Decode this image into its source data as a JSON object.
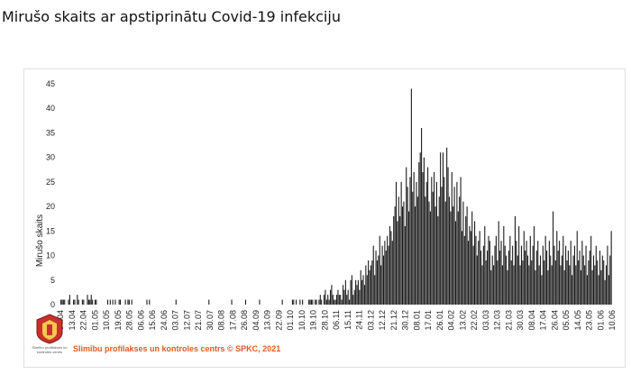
{
  "title": "Mirušo skaits ar apstiprinātu Covid-19 infekciju",
  "footer": {
    "credit": "Slimību profilakses un kontroles centrs © SPKC, 2021",
    "logo_text": "Slimību profilakses un kontroles centrs"
  },
  "colors": {
    "bar": "#1a1a1a",
    "credit": "#e15a24"
  },
  "chart_data": {
    "type": "bar",
    "ylabel": "Mirušo skaits",
    "xlabel": "",
    "ylim": [
      0,
      45
    ],
    "yticks": [
      0,
      5,
      10,
      15,
      20,
      25,
      30,
      35,
      40,
      45
    ],
    "grid": false,
    "date_range": [
      "2020-04-04",
      "2021-06-10"
    ],
    "xtick_labels": [
      "04.04",
      "13.04",
      "22.04",
      "01.05",
      "10.05",
      "19.05",
      "28.05",
      "06.06",
      "15.06",
      "24.06",
      "03.07",
      "12.07",
      "21.07",
      "30.07",
      "08.08",
      "17.08",
      "26.08",
      "04.09",
      "13.09",
      "22.09",
      "01.10",
      "10.10",
      "19.10",
      "28.10",
      "06.11",
      "15.11",
      "24.11",
      "03.12",
      "12.12",
      "21.12",
      "30.12",
      "08.01",
      "17.01",
      "26.01",
      "04.02",
      "13.02",
      "22.02",
      "03.03",
      "12.03",
      "21.03",
      "30.03",
      "08.04",
      "17.04",
      "26.04",
      "05.05",
      "14.05",
      "23.05",
      "01.06",
      "10.06"
    ],
    "values": [
      1,
      1,
      1,
      1,
      0,
      0,
      1,
      2,
      0,
      0,
      1,
      1,
      0,
      2,
      1,
      0,
      0,
      1,
      1,
      0,
      0,
      2,
      1,
      1,
      2,
      1,
      0,
      1,
      1,
      0,
      0,
      0,
      0,
      0,
      0,
      0,
      0,
      1,
      0,
      1,
      0,
      1,
      0,
      1,
      0,
      0,
      1,
      1,
      0,
      0,
      0,
      1,
      0,
      1,
      1,
      0,
      1,
      0,
      0,
      0,
      0,
      0,
      0,
      0,
      0,
      0,
      0,
      0,
      1,
      0,
      1,
      0,
      0,
      0,
      0,
      0,
      0,
      0,
      0,
      0,
      0,
      0,
      0,
      0,
      0,
      0,
      0,
      0,
      0,
      0,
      0,
      1,
      0,
      0,
      0,
      0,
      0,
      0,
      0,
      0,
      0,
      0,
      0,
      0,
      0,
      0,
      0,
      0,
      0,
      0,
      0,
      0,
      0,
      0,
      0,
      0,
      0,
      1,
      0,
      0,
      0,
      0,
      0,
      0,
      0,
      0,
      0,
      0,
      0,
      0,
      0,
      0,
      0,
      0,
      0,
      1,
      0,
      0,
      0,
      0,
      0,
      0,
      0,
      0,
      0,
      0,
      1,
      0,
      0,
      0,
      0,
      0,
      0,
      0,
      0,
      0,
      0,
      1,
      0,
      0,
      0,
      0,
      0,
      0,
      0,
      0,
      0,
      0,
      0,
      0,
      0,
      0,
      0,
      0,
      0,
      1,
      0,
      0,
      0,
      0,
      0,
      0,
      0,
      1,
      1,
      0,
      1,
      0,
      0,
      1,
      0,
      1,
      0,
      0,
      0,
      0,
      1,
      1,
      1,
      1,
      0,
      1,
      1,
      0,
      1,
      2,
      1,
      0,
      2,
      3,
      1,
      2,
      1,
      3,
      4,
      2,
      1,
      1,
      2,
      3,
      2,
      2,
      1,
      4,
      3,
      5,
      2,
      3,
      1,
      5,
      6,
      2,
      3,
      5,
      4,
      5,
      3,
      7,
      5,
      6,
      4,
      8,
      6,
      9,
      7,
      8,
      9,
      12,
      6,
      11,
      9,
      10,
      14,
      8,
      12,
      10,
      13,
      11,
      14,
      12,
      16,
      15,
      13,
      18,
      20,
      25,
      17,
      22,
      18,
      25,
      20,
      21,
      16,
      28,
      24,
      19,
      26,
      44,
      23,
      27,
      20,
      25,
      22,
      29,
      31,
      36,
      27,
      30,
      22,
      25,
      28,
      21,
      19,
      26,
      23,
      27,
      20,
      25,
      18,
      22,
      31,
      24,
      31,
      26,
      21,
      32,
      28,
      22,
      19,
      27,
      20,
      24,
      17,
      25,
      19,
      22,
      26,
      15,
      21,
      14,
      18,
      20,
      13,
      16,
      15,
      19,
      12,
      17,
      14,
      10,
      13,
      15,
      11,
      8,
      12,
      16,
      9,
      11,
      14,
      13,
      7,
      10,
      8,
      12,
      14,
      9,
      17,
      11,
      13,
      8,
      16,
      12,
      10,
      7,
      11,
      14,
      9,
      12,
      8,
      18,
      13,
      10,
      16,
      8,
      12,
      9,
      15,
      11,
      13,
      10,
      8,
      14,
      9,
      12,
      16,
      7,
      11,
      13,
      8,
      10,
      6,
      12,
      9,
      14,
      11,
      7,
      13,
      10,
      8,
      19,
      12,
      9,
      15,
      11,
      13,
      8,
      10,
      14,
      7,
      12,
      9,
      11,
      8,
      13,
      6,
      10,
      12,
      8,
      15,
      9,
      11,
      7,
      13,
      10,
      8,
      12,
      6,
      9,
      11,
      14,
      7,
      10,
      8,
      12,
      9,
      6,
      11,
      7,
      10,
      9,
      5,
      8,
      12,
      6,
      10,
      15
    ]
  }
}
